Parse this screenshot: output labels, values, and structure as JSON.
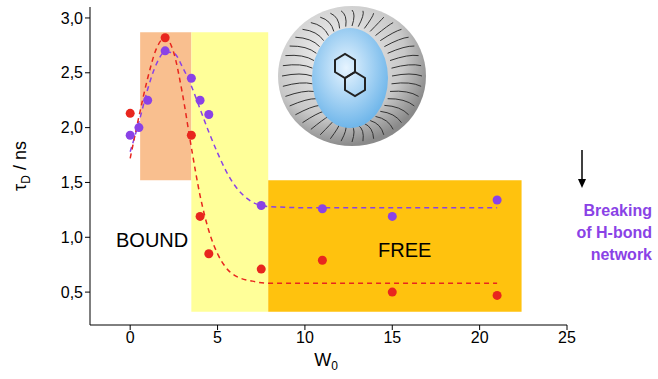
{
  "chart_data": {
    "type": "scatter",
    "x_label": {
      "text": "W",
      "subscript": "0"
    },
    "y_label": {
      "text": "τ",
      "subscript": "D",
      "suffix": " / ns"
    },
    "xlim": [
      -2.3,
      25
    ],
    "xticks": [
      0,
      5,
      10,
      15,
      20,
      25
    ],
    "ylim": [
      0.2,
      3.1
    ],
    "yticks": [
      {
        "value": 0.5,
        "label": "0,5"
      },
      {
        "value": 1.0,
        "label": "1,0"
      },
      {
        "value": 1.5,
        "label": "1,5"
      },
      {
        "value": 2.0,
        "label": "2,0"
      },
      {
        "value": 2.5,
        "label": "2,5"
      },
      {
        "value": 3.0,
        "label": "3,0"
      }
    ],
    "grid": false,
    "series": [
      {
        "type": "scatter",
        "marker": "circle",
        "color": "#8a42e6",
        "x": [
          0,
          0.5,
          1,
          2,
          3.5,
          4,
          4.5,
          7.5,
          11,
          15,
          21
        ],
        "values": [
          1.93,
          2.0,
          2.25,
          2.7,
          2.45,
          2.25,
          2.12,
          1.29,
          1.26,
          1.19,
          1.34
        ]
      },
      {
        "type": "scatter",
        "marker": "circle",
        "color": "#e8261e",
        "x": [
          0,
          2,
          3.5,
          4,
          4.5,
          7.5,
          11,
          15,
          21
        ],
        "values": [
          2.13,
          2.82,
          1.93,
          1.19,
          0.85,
          0.71,
          0.79,
          0.5,
          0.47
        ]
      },
      {
        "type": "line",
        "line_style": "dashed",
        "color": "#8a42e6",
        "x": [
          0,
          0.5,
          1,
          1.5,
          2,
          2.5,
          3,
          3.5,
          4,
          4.5,
          5,
          5.5,
          6,
          6.5,
          7,
          7.5,
          8,
          10,
          21
        ],
        "values": [
          1.78,
          2.05,
          2.35,
          2.58,
          2.69,
          2.68,
          2.55,
          2.38,
          2.17,
          1.96,
          1.77,
          1.6,
          1.47,
          1.38,
          1.32,
          1.29,
          1.28,
          1.27,
          1.27
        ]
      },
      {
        "type": "line",
        "line_style": "dashed",
        "color": "#e8261e",
        "x": [
          0,
          0.5,
          1,
          1.5,
          2,
          2.5,
          3,
          3.5,
          4,
          4.5,
          5,
          5.5,
          6,
          7,
          8,
          10,
          21
        ],
        "values": [
          1.72,
          2.1,
          2.45,
          2.72,
          2.82,
          2.68,
          2.3,
          1.82,
          1.38,
          1.06,
          0.85,
          0.72,
          0.65,
          0.6,
          0.58,
          0.58,
          0.58
        ]
      }
    ],
    "regions": [
      {
        "x": [
          0.57,
          3.5
        ],
        "y": [
          1.52,
          2.87
        ],
        "color": "#f9bf8f"
      },
      {
        "x": [
          3.5,
          7.9
        ],
        "y": [
          0.32,
          2.87
        ],
        "color": "#ffff99"
      },
      {
        "x": [
          7.9,
          22.4
        ],
        "y": [
          0.32,
          1.52
        ],
        "color": "#ffc20e"
      }
    ],
    "annotations": [
      {
        "text": "BOUND"
      },
      {
        "text": "FREE"
      },
      {
        "text": [
          "Breaking",
          "of H-bond",
          "network"
        ],
        "color": "#8a42e6"
      }
    ]
  }
}
